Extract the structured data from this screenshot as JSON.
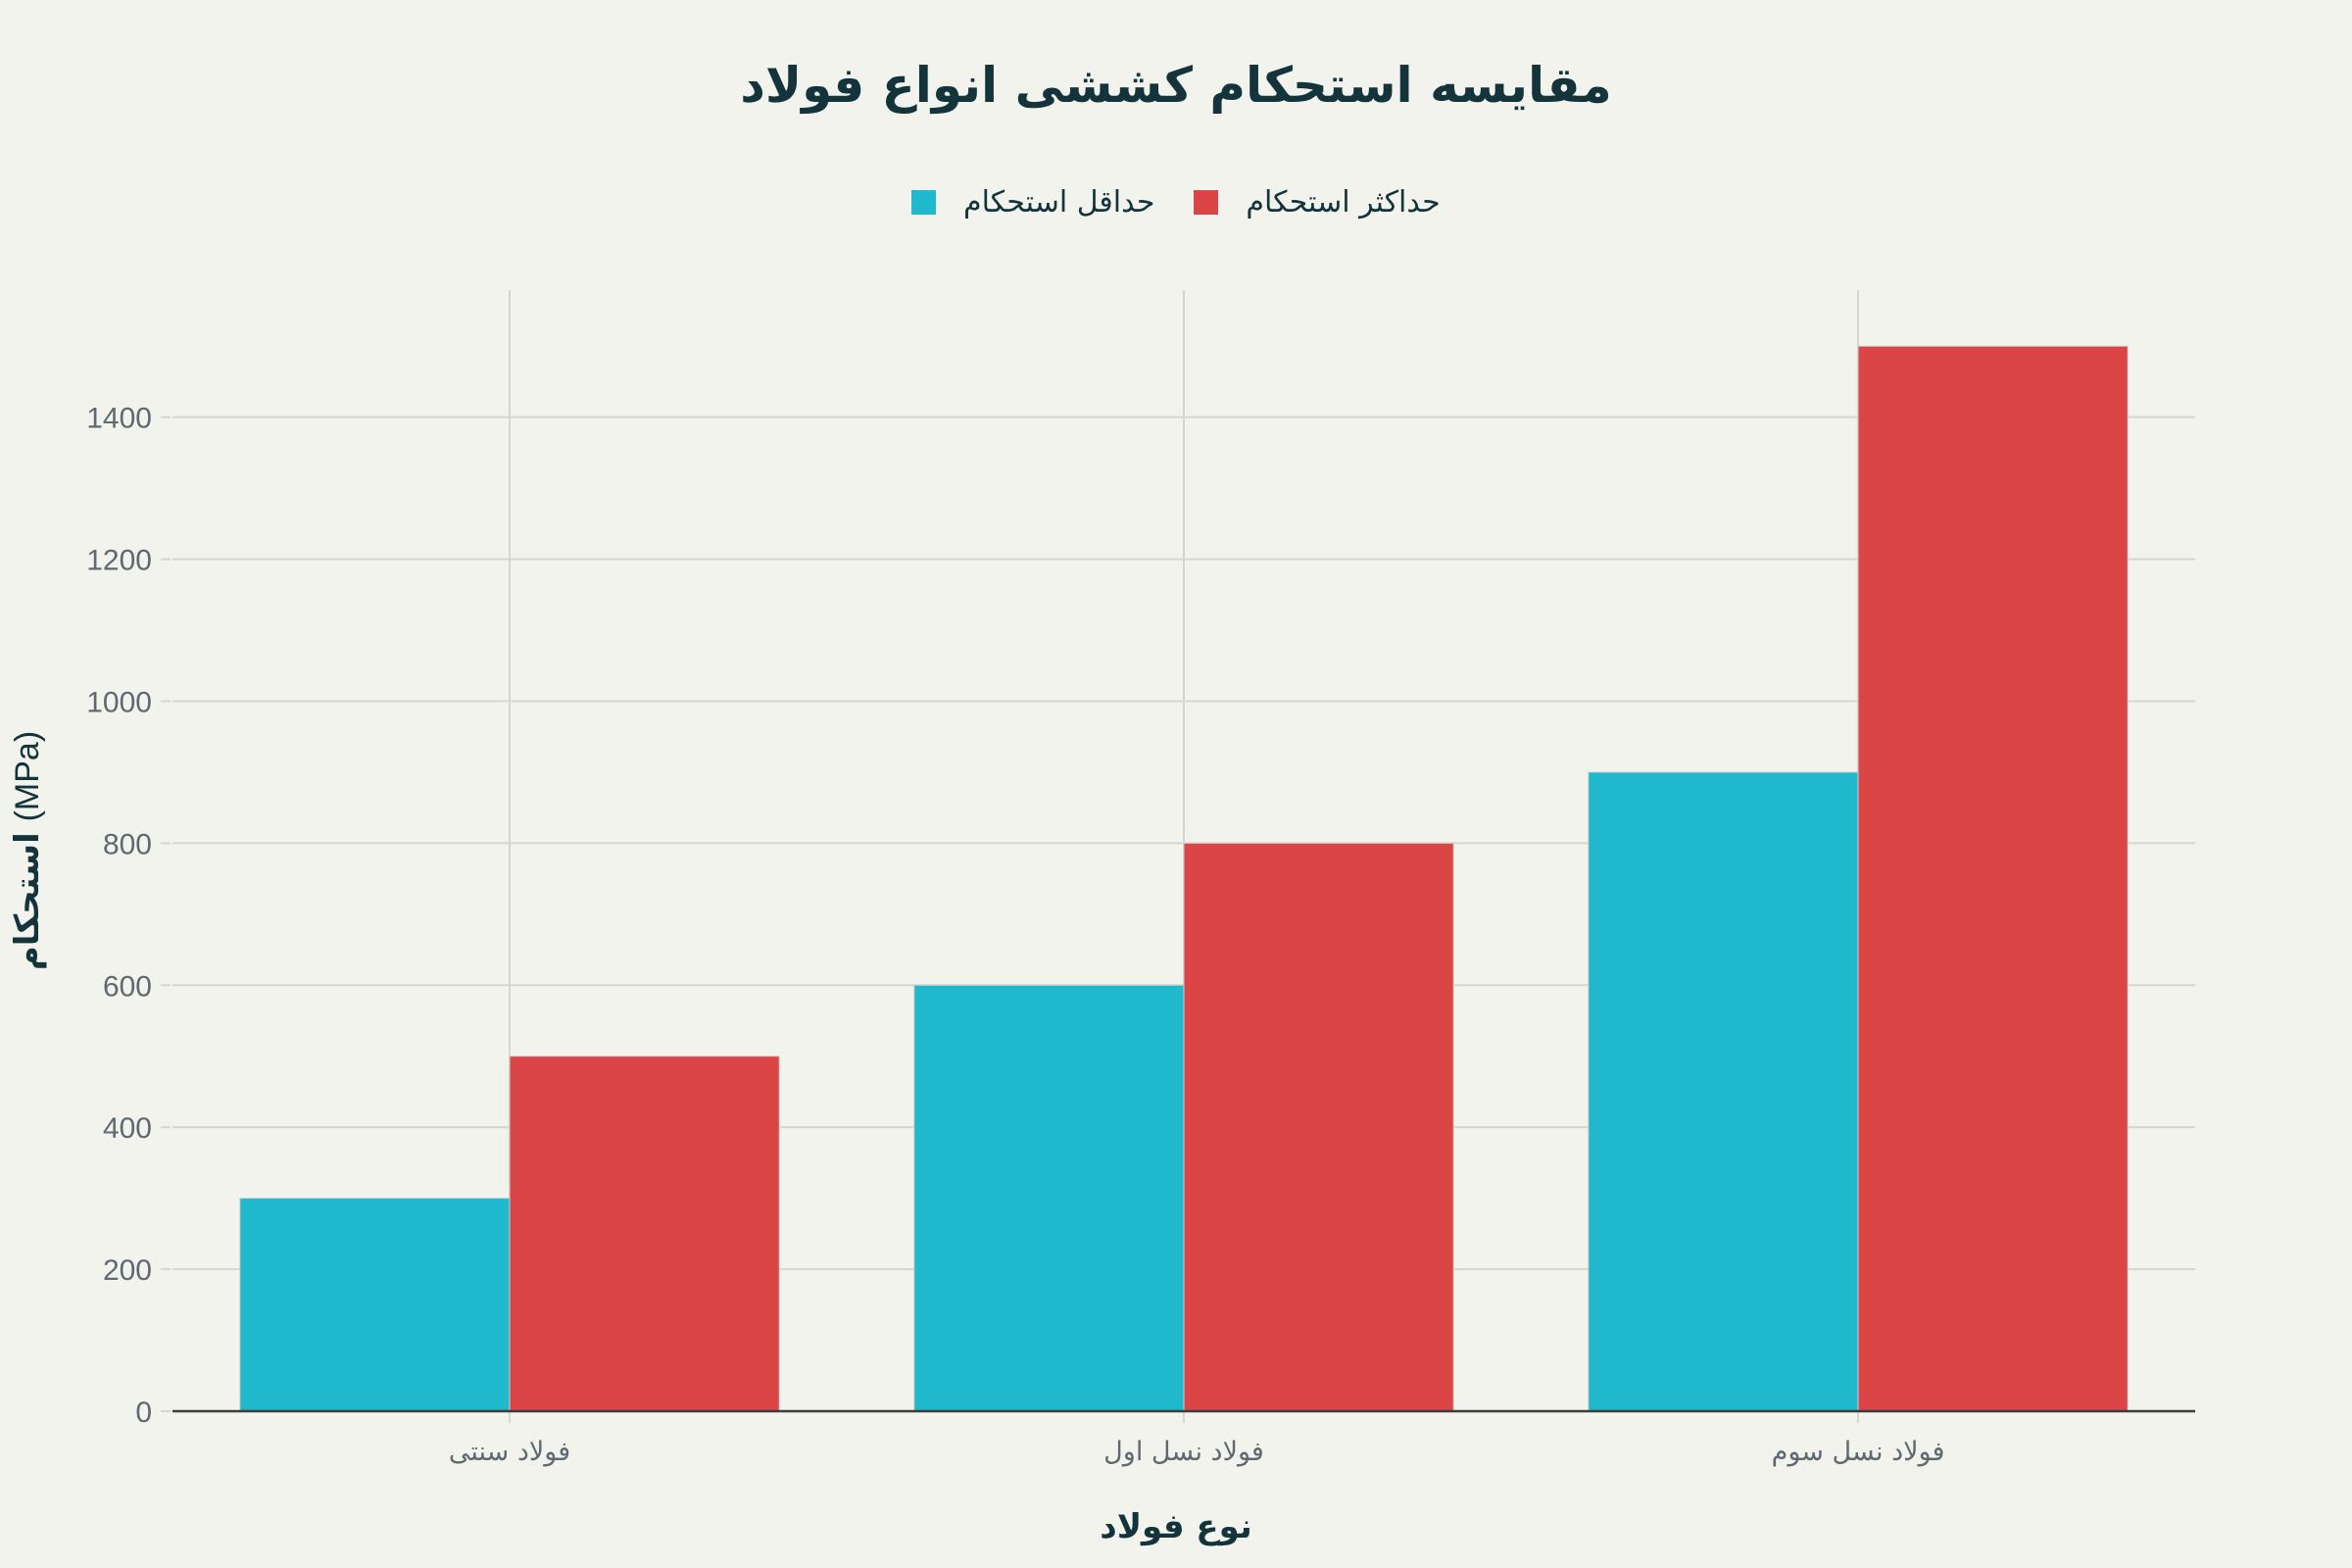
{
  "chart_data": {
    "type": "bar",
    "title": "مقایسه استحکام کششی انواع فولاد",
    "xlabel": "نوع فولاد",
    "ylabel": "استحکام",
    "ylabel_unit": "(MPa)",
    "categories": [
      "فولاد سنتی",
      "فولاد نسل اول",
      "فولاد نسل سوم"
    ],
    "series": [
      {
        "name": "حداقل استحکام",
        "color": "#1FB8CD",
        "values": [
          300,
          600,
          900
        ]
      },
      {
        "name": "حداکثر استحکام",
        "color": "#DB4545",
        "values": [
          500,
          800,
          1500
        ]
      }
    ],
    "ylim": [
      0,
      1579
    ],
    "yticks": [
      0,
      200,
      400,
      600,
      800,
      1000,
      1200,
      1400
    ],
    "grid": true,
    "legend_position": "top-center",
    "barmode": "group"
  },
  "colors": {
    "background": "#F3F3EE",
    "title": "#13343B",
    "tick_label": "#5E6A70",
    "grid": "#D6D6D1",
    "axis": "#3D3D3D"
  }
}
